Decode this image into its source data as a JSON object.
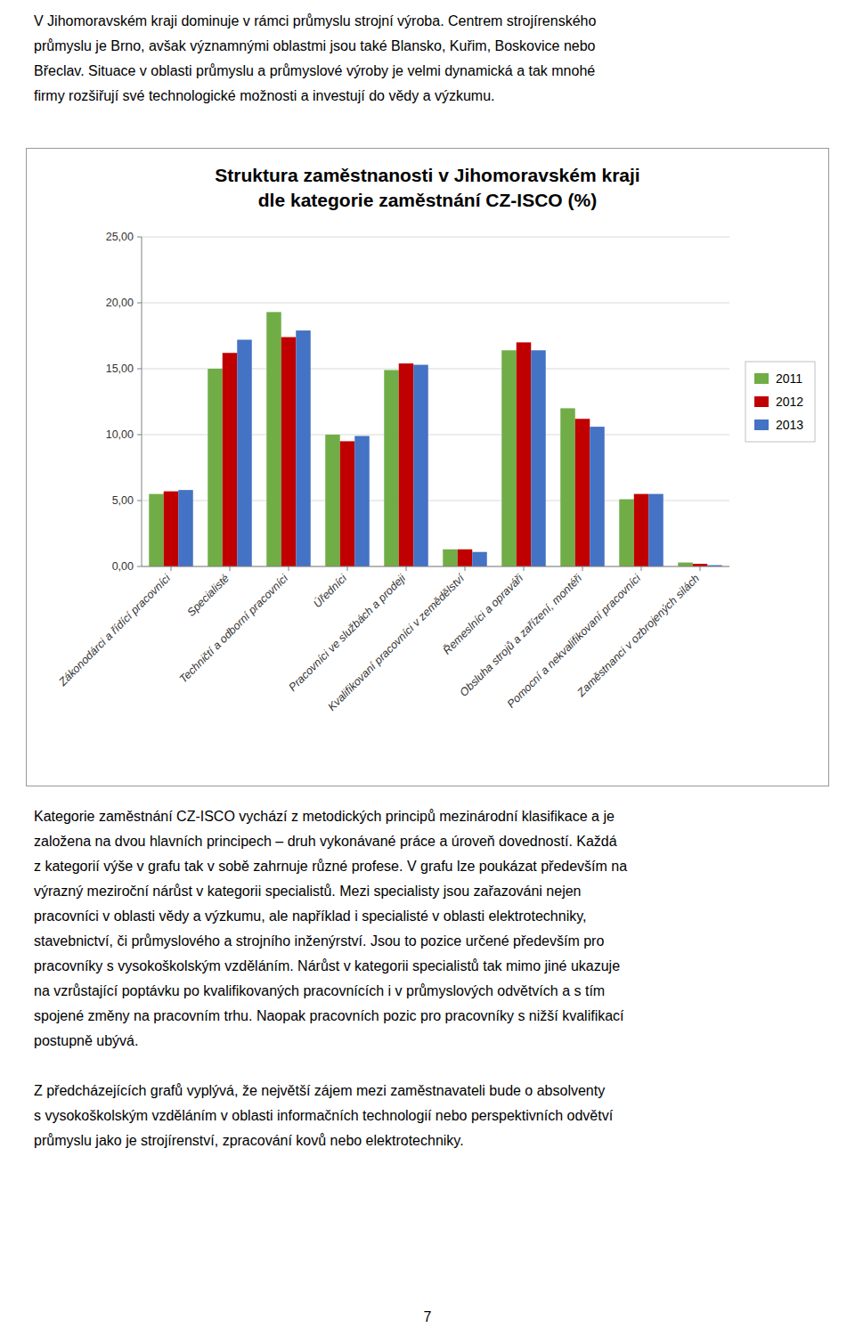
{
  "top_text": "V Jihomoravském kraji dominuje v rámci průmyslu strojní výroba. Centrem strojírenského\nprůmyslu je Brno, avšak významnými oblastmi jsou také Blansko, Kuřim, Boskovice nebo\nBřeclav. Situace v oblasti průmyslu a průmyslové výroby je velmi dynamická a tak mnohé\nfirmy rozšiřují své technologické možnosti a investují do vědy a výzkumu.",
  "chart_data": {
    "type": "bar",
    "title": "Struktura zaměstnanosti v Jihomoravském kraji\ndle kategorie zaměstnání CZ-ISCO (%)",
    "categories": [
      "Zákonodárci a řídící pracovníci",
      "Specialisté",
      "Techničtí a odborní pracovníci",
      "Úředníci",
      "Pracovníci ve službách a prodeji",
      "Kvalifikovaní pracovníci v zemědělství",
      "Řemeslníci a opraváři",
      "Obsluha strojů a zařízení, montéři",
      "Pomocní a nekvalifikovaní pracovníci",
      "Zaměstnanci v ozbrojených silách"
    ],
    "series": [
      {
        "name": "2011",
        "color": "#70ad47",
        "values": [
          5.5,
          15.0,
          19.3,
          10.0,
          14.9,
          1.3,
          16.4,
          12.0,
          5.1,
          0.3
        ]
      },
      {
        "name": "2012",
        "color": "#c00000",
        "values": [
          5.7,
          16.2,
          17.4,
          9.5,
          15.4,
          1.3,
          17.0,
          11.2,
          5.5,
          0.2
        ]
      },
      {
        "name": "2013",
        "color": "#4472c4",
        "values": [
          5.8,
          17.2,
          17.9,
          9.9,
          15.3,
          1.1,
          16.4,
          10.6,
          5.5,
          0.1
        ]
      }
    ],
    "ylim": [
      0,
      25
    ],
    "yticks": [
      {
        "value": 0,
        "label": "0,00"
      },
      {
        "value": 5,
        "label": "5,00"
      },
      {
        "value": 10,
        "label": "10,00"
      },
      {
        "value": 15,
        "label": "15,00"
      },
      {
        "value": 20,
        "label": "20,00"
      },
      {
        "value": 25,
        "label": "25,00"
      }
    ],
    "grid": true,
    "legend": "right"
  },
  "bottom_text": "Kategorie zaměstnání CZ-ISCO vychází z metodických principů mezinárodní klasifikace a je\nzaložena na dvou hlavních principech – druh vykonávané práce a úroveň dovedností. Každá\nz kategorií výše v grafu tak v sobě zahrnuje různé profese. V grafu lze poukázat především na\nvýrazný meziroční nárůst v kategorii specialistů. Mezi specialisty jsou zařazováni nejen\npracovníci v oblasti vědy a výzkumu, ale například i specialisté v oblasti elektrotechniky,\nstavebnictví, či průmyslového a strojního inženýrství. Jsou to pozice určené především pro\npracovníky s vysokoškolským vzděláním. Nárůst v kategorii specialistů tak mimo jiné ukazuje\nna vzrůstající poptávku po kvalifikovaných pracovnících i v průmyslových odvětvích a s tím\nspojené změny na pracovním trhu. Naopak pracovních pozic pro pracovníky s nižší kvalifikací\npostupně ubývá.\n\nZ předcházejících grafů vyplývá, že největší zájem mezi zaměstnavateli bude o absolventy\ns vysokoškolským vzděláním v oblasti informačních technologií nebo perspektivních odvětví\nprůmyslu jako je strojírenství, zpracování kovů nebo elektrotechniky.",
  "page_number": "7"
}
